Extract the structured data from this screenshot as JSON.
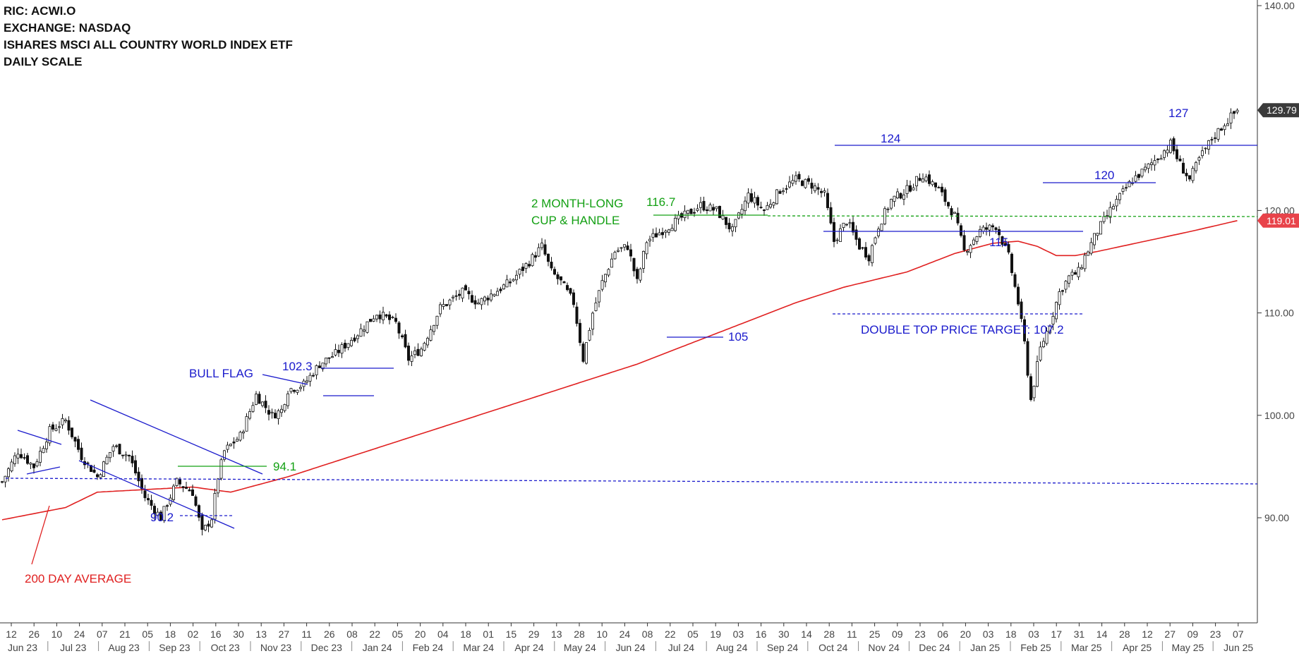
{
  "header": {
    "ric": "RIC: ACWI.O",
    "exchange": "EXCHANGE: NASDAQ",
    "name": "ISHARES MSCI ALL COUNTRY WORLD INDEX ETF",
    "scale": "DAILY SCALE"
  },
  "chart_data": {
    "type": "candlestick",
    "ylim": [
      80,
      140
    ],
    "y_ticks": [
      "140.00",
      "120.00",
      "110.00",
      "100.00",
      "90.00"
    ],
    "grid": false,
    "last_price": "129.79",
    "ma_value": "119.01",
    "x_tick_labels": [
      "12",
      "26",
      "10",
      "24",
      "07",
      "21",
      "05",
      "18",
      "02",
      "16",
      "30",
      "13",
      "27",
      "11",
      "26",
      "08",
      "22",
      "05",
      "20",
      "04",
      "18",
      "01",
      "15",
      "29",
      "13",
      "28",
      "10",
      "24",
      "08",
      "22",
      "05",
      "19",
      "03",
      "16",
      "30",
      "14",
      "28",
      "11",
      "25",
      "09",
      "23",
      "06",
      "20",
      "03",
      "18",
      "03",
      "17",
      "31",
      "14",
      "28",
      "12",
      "27",
      "09",
      "23",
      "07"
    ],
    "month_labels": [
      "Jun 23",
      "Jul 23",
      "Aug 23",
      "Sep 23",
      "Oct 23",
      "Nov 23",
      "Dec 23",
      "Jan 24",
      "Feb 24",
      "Mar 24",
      "Apr 24",
      "May 24",
      "Jun 24",
      "Jul 24",
      "Aug 24",
      "Sep 24",
      "Oct 24",
      "Nov 24",
      "Dec 24",
      "Jan 25",
      "Feb 25",
      "Mar 25",
      "Apr 25",
      "May 25",
      "Jun 25"
    ],
    "price_path": [
      [
        0,
        93.5
      ],
      [
        5,
        96.5
      ],
      [
        10,
        95.0
      ],
      [
        15,
        98.5
      ],
      [
        20,
        99.5
      ],
      [
        25,
        96.0
      ],
      [
        30,
        94.0
      ],
      [
        35,
        97.0
      ],
      [
        40,
        96.0
      ],
      [
        45,
        92.0
      ],
      [
        50,
        90.0
      ],
      [
        55,
        93.5
      ],
      [
        60,
        92.5
      ],
      [
        63,
        88.5
      ],
      [
        66,
        90.0
      ],
      [
        68,
        94.0
      ],
      [
        70,
        96.5
      ],
      [
        75,
        98.0
      ],
      [
        80,
        102.0
      ],
      [
        85,
        100.0
      ],
      [
        88,
        100.5
      ],
      [
        90,
        102.5
      ],
      [
        95,
        103.0
      ],
      [
        100,
        105.0
      ],
      [
        105,
        106.0
      ],
      [
        112,
        108.0
      ],
      [
        118,
        110.0
      ],
      [
        124,
        109.0
      ],
      [
        128,
        105.5
      ],
      [
        132,
        106.5
      ],
      [
        138,
        110.5
      ],
      [
        145,
        112.0
      ],
      [
        150,
        111.0
      ],
      [
        155,
        112.0
      ],
      [
        160,
        113.0
      ],
      [
        166,
        115.0
      ],
      [
        170,
        116.5
      ],
      [
        173,
        114.0
      ],
      [
        176,
        113.0
      ],
      [
        180,
        111.0
      ],
      [
        183,
        105.5
      ],
      [
        186,
        110.0
      ],
      [
        189,
        113.0
      ],
      [
        193,
        116.0
      ],
      [
        197,
        116.5
      ],
      [
        200,
        113.0
      ],
      [
        203,
        117.0
      ],
      [
        210,
        118.5
      ],
      [
        215,
        119.5
      ],
      [
        220,
        120.5
      ],
      [
        225,
        120.0
      ],
      [
        230,
        118.0
      ],
      [
        235,
        121.5
      ],
      [
        240,
        120.0
      ],
      [
        245,
        122.0
      ],
      [
        250,
        123.0
      ],
      [
        255,
        122.5
      ],
      [
        259,
        121.5
      ],
      [
        262,
        117.0
      ],
      [
        266,
        119.0
      ],
      [
        270,
        116.5
      ],
      [
        273,
        115.5
      ],
      [
        276,
        118.5
      ],
      [
        280,
        121.0
      ],
      [
        285,
        122.0
      ],
      [
        290,
        123.5
      ],
      [
        295,
        122.0
      ],
      [
        300,
        119.5
      ],
      [
        303,
        116.0
      ],
      [
        308,
        118.0
      ],
      [
        313,
        118.5
      ],
      [
        317,
        115.5
      ],
      [
        320,
        111.0
      ],
      [
        322,
        107.0
      ],
      [
        324,
        101.5
      ],
      [
        327,
        106.5
      ],
      [
        330,
        109.0
      ],
      [
        333,
        112.0
      ],
      [
        336,
        113.5
      ],
      [
        339,
        114.0
      ],
      [
        341,
        115.5
      ],
      [
        345,
        118.0
      ],
      [
        350,
        120.5
      ],
      [
        356,
        123.0
      ],
      [
        360,
        124.0
      ],
      [
        365,
        125.5
      ],
      [
        368,
        126.5
      ],
      [
        371,
        124.5
      ],
      [
        374,
        123.0
      ],
      [
        377,
        125.0
      ],
      [
        381,
        127.0
      ],
      [
        385,
        128.5
      ],
      [
        389,
        129.79
      ]
    ],
    "ma_path": [
      [
        0,
        89.8
      ],
      [
        20,
        91.0
      ],
      [
        30,
        92.5
      ],
      [
        60,
        93.0
      ],
      [
        72,
        92.5
      ],
      [
        90,
        94.0
      ],
      [
        120,
        97.0
      ],
      [
        150,
        100.0
      ],
      [
        175,
        102.5
      ],
      [
        200,
        105.0
      ],
      [
        225,
        108.0
      ],
      [
        250,
        111.0
      ],
      [
        265,
        112.5
      ],
      [
        285,
        114.0
      ],
      [
        300,
        115.8
      ],
      [
        312,
        116.8
      ],
      [
        320,
        117.0
      ],
      [
        326,
        116.5
      ],
      [
        332,
        115.6
      ],
      [
        338,
        115.6
      ],
      [
        345,
        116.0
      ],
      [
        360,
        117.0
      ],
      [
        375,
        118.0
      ],
      [
        389,
        119.01
      ]
    ],
    "annotations": {
      "bull_flag": "BULL FLAG",
      "flag_high": "102.3",
      "breakout_941": "94.1",
      "low_902": "90.2",
      "ma_label": "200 DAY AVERAGE",
      "cup_handle_line1": "2 MONTH-LONG",
      "cup_handle_line2": "CUP & HANDLE",
      "cup_level": "116.7",
      "low_105": "105",
      "top_124": "124",
      "neck_115": "115",
      "target_text": "DOUBLE TOP PRICE TARGET: 107.2",
      "res_120": "120",
      "res_127": "127"
    },
    "colors": {
      "price": "#111111",
      "ma": "#e02020",
      "blue_lines": "#1a1acc",
      "green_lines": "#13a013",
      "last_price_tag": "#3a3a3a",
      "ma_tag": "#e8434a"
    }
  }
}
